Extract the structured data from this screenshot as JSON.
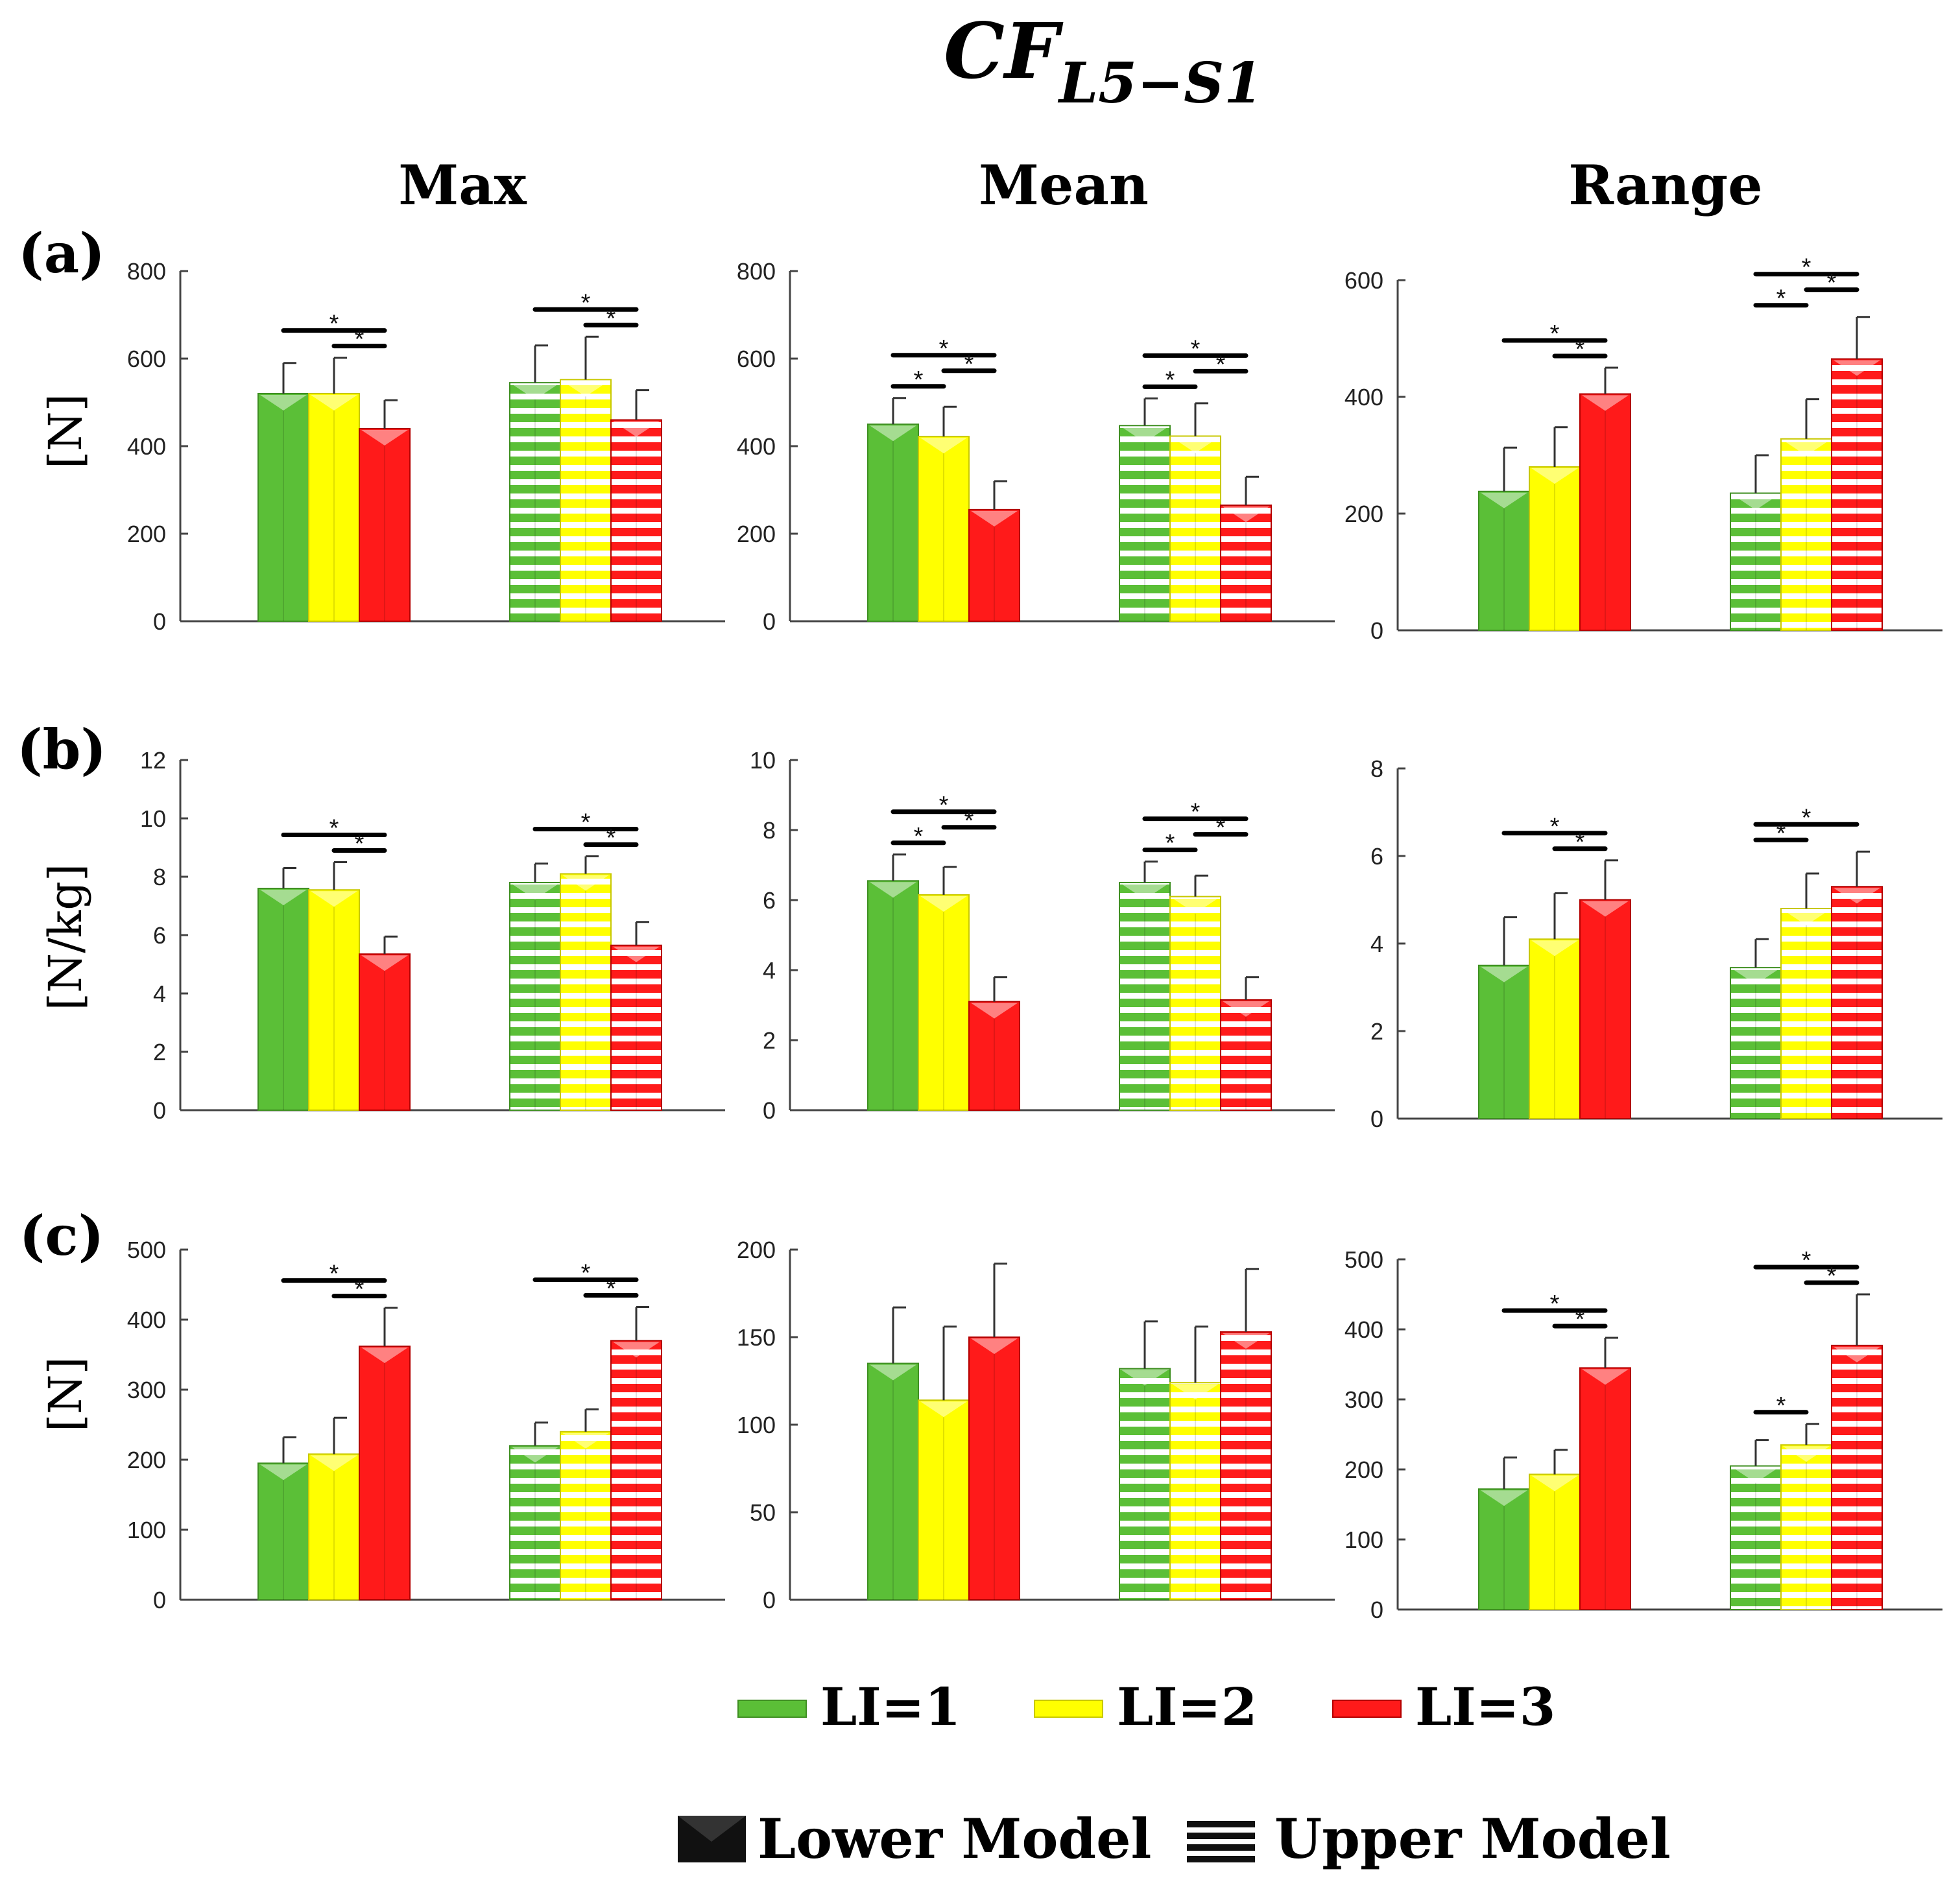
{
  "figure": {
    "title_main": "CF",
    "title_sub": "L5−S1",
    "columns": [
      "Max",
      "Mean",
      "Range"
    ],
    "rows": [
      {
        "label": "(a)",
        "unit": "[N]"
      },
      {
        "label": "(b)",
        "unit": "[N/kg]"
      },
      {
        "label": "(c)",
        "unit": "[N]"
      }
    ],
    "colors": {
      "LI1": "#5bbf37",
      "LI2": "#ffff00",
      "LI3": "#ff1a1a"
    },
    "legend_levels": [
      "LI=1",
      "LI=2",
      "LI=3"
    ],
    "legend_models": [
      "Lower Model",
      "Upper Model"
    ],
    "significance_marker": "*"
  },
  "chart_data": [
    {
      "type": "bar",
      "row": "(a)",
      "column": "Max",
      "ylim": [
        0,
        800
      ],
      "yticks": [
        0,
        200,
        400,
        600,
        800
      ],
      "groups": [
        "Lower Model",
        "Upper Model"
      ],
      "series": [
        {
          "name": "LI=1",
          "values": [
            520,
            545
          ],
          "errors": [
            70,
            85
          ]
        },
        {
          "name": "LI=2",
          "values": [
            520,
            552
          ],
          "errors": [
            82,
            98
          ]
        },
        {
          "name": "LI=3",
          "values": [
            440,
            460
          ],
          "errors": [
            65,
            68
          ]
        }
      ],
      "significance": [
        {
          "group": 0,
          "from": 0,
          "to": 2,
          "level": 2
        },
        {
          "group": 0,
          "from": 1,
          "to": 2,
          "level": 1
        },
        {
          "group": 1,
          "from": 0,
          "to": 2,
          "level": 2
        },
        {
          "group": 1,
          "from": 1,
          "to": 2,
          "level": 1
        }
      ]
    },
    {
      "type": "bar",
      "row": "(a)",
      "column": "Mean",
      "ylim": [
        0,
        800
      ],
      "yticks": [
        0,
        200,
        400,
        600,
        800
      ],
      "groups": [
        "Lower Model",
        "Upper Model"
      ],
      "series": [
        {
          "name": "LI=1",
          "values": [
            450,
            447
          ],
          "errors": [
            60,
            62
          ]
        },
        {
          "name": "LI=2",
          "values": [
            422,
            423
          ],
          "errors": [
            68,
            75
          ]
        },
        {
          "name": "LI=3",
          "values": [
            255,
            265
          ],
          "errors": [
            65,
            65
          ]
        }
      ],
      "significance": [
        {
          "group": 0,
          "from": 0,
          "to": 2,
          "level": 3
        },
        {
          "group": 0,
          "from": 1,
          "to": 2,
          "level": 2
        },
        {
          "group": 0,
          "from": 0,
          "to": 1,
          "level": 1
        },
        {
          "group": 1,
          "from": 0,
          "to": 2,
          "level": 3
        },
        {
          "group": 1,
          "from": 1,
          "to": 2,
          "level": 2
        },
        {
          "group": 1,
          "from": 0,
          "to": 1,
          "level": 1
        }
      ]
    },
    {
      "type": "bar",
      "row": "(a)",
      "column": "Range",
      "ylim": [
        0,
        600
      ],
      "yticks": [
        0,
        200,
        400,
        600
      ],
      "groups": [
        "Lower Model",
        "Upper Model"
      ],
      "series": [
        {
          "name": "LI=1",
          "values": [
            238,
            235
          ],
          "errors": [
            75,
            65
          ]
        },
        {
          "name": "LI=2",
          "values": [
            280,
            328
          ],
          "errors": [
            68,
            68
          ]
        },
        {
          "name": "LI=3",
          "values": [
            405,
            465
          ],
          "errors": [
            45,
            72
          ]
        }
      ],
      "significance": [
        {
          "group": 0,
          "from": 0,
          "to": 2,
          "level": 2
        },
        {
          "group": 0,
          "from": 1,
          "to": 2,
          "level": 1
        },
        {
          "group": 1,
          "from": 0,
          "to": 2,
          "level": 3
        },
        {
          "group": 1,
          "from": 1,
          "to": 2,
          "level": 2
        },
        {
          "group": 1,
          "from": 0,
          "to": 1,
          "level": 1
        }
      ]
    },
    {
      "type": "bar",
      "row": "(b)",
      "column": "Max",
      "ylim": [
        0,
        12
      ],
      "yticks": [
        0,
        2,
        4,
        6,
        8,
        10,
        12
      ],
      "groups": [
        "Lower Model",
        "Upper Model"
      ],
      "series": [
        {
          "name": "LI=1",
          "values": [
            7.6,
            7.8
          ],
          "errors": [
            0.7,
            0.65
          ]
        },
        {
          "name": "LI=2",
          "values": [
            7.55,
            8.1
          ],
          "errors": [
            0.95,
            0.6
          ]
        },
        {
          "name": "LI=3",
          "values": [
            5.35,
            5.65
          ],
          "errors": [
            0.6,
            0.8
          ]
        }
      ],
      "significance": [
        {
          "group": 0,
          "from": 0,
          "to": 2,
          "level": 2
        },
        {
          "group": 0,
          "from": 1,
          "to": 2,
          "level": 1
        },
        {
          "group": 1,
          "from": 0,
          "to": 2,
          "level": 2
        },
        {
          "group": 1,
          "from": 1,
          "to": 2,
          "level": 1
        }
      ]
    },
    {
      "type": "bar",
      "row": "(b)",
      "column": "Mean",
      "ylim": [
        0,
        10
      ],
      "yticks": [
        0,
        2,
        4,
        6,
        8,
        10
      ],
      "groups": [
        "Lower Model",
        "Upper Model"
      ],
      "series": [
        {
          "name": "LI=1",
          "values": [
            6.55,
            6.5
          ],
          "errors": [
            0.75,
            0.6
          ]
        },
        {
          "name": "LI=2",
          "values": [
            6.15,
            6.1
          ],
          "errors": [
            0.8,
            0.6
          ]
        },
        {
          "name": "LI=3",
          "values": [
            3.1,
            3.15
          ],
          "errors": [
            0.7,
            0.65
          ]
        }
      ],
      "significance": [
        {
          "group": 0,
          "from": 0,
          "to": 2,
          "level": 3
        },
        {
          "group": 0,
          "from": 1,
          "to": 2,
          "level": 2
        },
        {
          "group": 0,
          "from": 0,
          "to": 1,
          "level": 1
        },
        {
          "group": 1,
          "from": 0,
          "to": 2,
          "level": 3
        },
        {
          "group": 1,
          "from": 1,
          "to": 2,
          "level": 2
        },
        {
          "group": 1,
          "from": 0,
          "to": 1,
          "level": 1
        }
      ]
    },
    {
      "type": "bar",
      "row": "(b)",
      "column": "Range",
      "ylim": [
        0,
        8
      ],
      "yticks": [
        0,
        2,
        4,
        6,
        8
      ],
      "groups": [
        "Lower Model",
        "Upper Model"
      ],
      "series": [
        {
          "name": "LI=1",
          "values": [
            3.5,
            3.45
          ],
          "errors": [
            1.1,
            0.65
          ]
        },
        {
          "name": "LI=2",
          "values": [
            4.1,
            4.8
          ],
          "errors": [
            1.05,
            0.8
          ]
        },
        {
          "name": "LI=3",
          "values": [
            5.0,
            5.3
          ],
          "errors": [
            0.9,
            0.8
          ]
        }
      ],
      "significance": [
        {
          "group": 0,
          "from": 0,
          "to": 2,
          "level": 2
        },
        {
          "group": 0,
          "from": 1,
          "to": 2,
          "level": 1
        },
        {
          "group": 1,
          "from": 0,
          "to": 2,
          "level": 2
        },
        {
          "group": 1,
          "from": 0,
          "to": 1,
          "level": 1
        }
      ]
    },
    {
      "type": "bar",
      "row": "(c)",
      "column": "Max",
      "ylim": [
        0,
        500
      ],
      "yticks": [
        0,
        100,
        200,
        300,
        400,
        500
      ],
      "groups": [
        "Lower Model",
        "Upper Model"
      ],
      "series": [
        {
          "name": "LI=1",
          "values": [
            195,
            220
          ],
          "errors": [
            37,
            33
          ]
        },
        {
          "name": "LI=2",
          "values": [
            208,
            240
          ],
          "errors": [
            52,
            32
          ]
        },
        {
          "name": "LI=3",
          "values": [
            362,
            370
          ],
          "errors": [
            55,
            48
          ]
        }
      ],
      "significance": [
        {
          "group": 0,
          "from": 0,
          "to": 2,
          "level": 2
        },
        {
          "group": 0,
          "from": 1,
          "to": 2,
          "level": 1
        },
        {
          "group": 1,
          "from": 0,
          "to": 2,
          "level": 2
        },
        {
          "group": 1,
          "from": 1,
          "to": 2,
          "level": 1
        }
      ]
    },
    {
      "type": "bar",
      "row": "(c)",
      "column": "Mean",
      "ylim": [
        0,
        200
      ],
      "yticks": [
        0,
        50,
        100,
        150,
        200
      ],
      "groups": [
        "Lower Model",
        "Upper Model"
      ],
      "series": [
        {
          "name": "LI=1",
          "values": [
            135,
            132
          ],
          "errors": [
            32,
            27
          ]
        },
        {
          "name": "LI=2",
          "values": [
            114,
            124
          ],
          "errors": [
            42,
            32
          ]
        },
        {
          "name": "LI=3",
          "values": [
            150,
            153
          ],
          "errors": [
            42,
            36
          ]
        }
      ],
      "significance": []
    },
    {
      "type": "bar",
      "row": "(c)",
      "column": "Range",
      "ylim": [
        0,
        500
      ],
      "yticks": [
        0,
        100,
        200,
        300,
        400,
        500
      ],
      "groups": [
        "Lower Model",
        "Upper Model"
      ],
      "series": [
        {
          "name": "LI=1",
          "values": [
            172,
            205
          ],
          "errors": [
            45,
            37
          ]
        },
        {
          "name": "LI=2",
          "values": [
            193,
            235
          ],
          "errors": [
            35,
            30
          ]
        },
        {
          "name": "LI=3",
          "values": [
            345,
            377
          ],
          "errors": [
            43,
            73
          ]
        }
      ],
      "significance": [
        {
          "group": 0,
          "from": 0,
          "to": 2,
          "level": 2
        },
        {
          "group": 0,
          "from": 1,
          "to": 2,
          "level": 1
        },
        {
          "group": 1,
          "from": 0,
          "to": 2,
          "level": 2
        },
        {
          "group": 1,
          "from": 1,
          "to": 2,
          "level": 1
        },
        {
          "group": 1,
          "from": 0,
          "to": 1,
          "level": 0
        }
      ]
    }
  ]
}
